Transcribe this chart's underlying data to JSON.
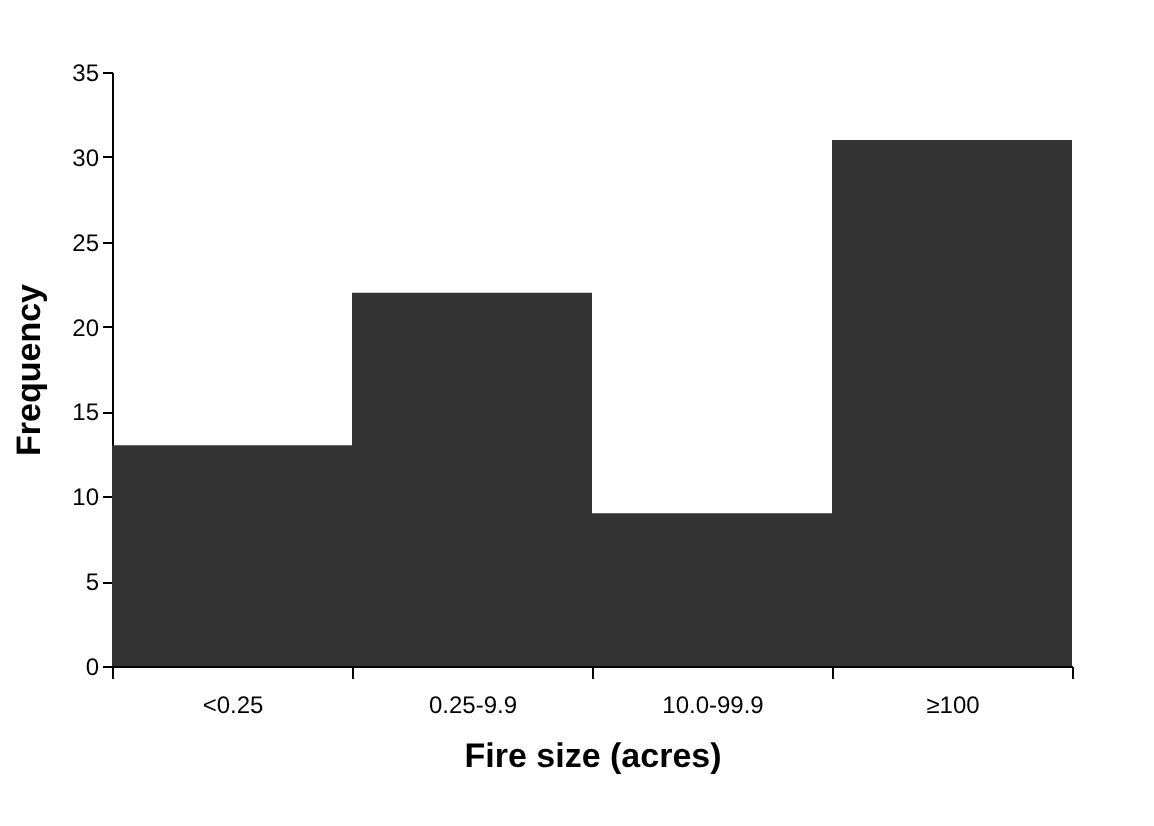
{
  "chart_data": {
    "type": "bar",
    "xlabel": "Fire size (acres)",
    "ylabel": "Frequency",
    "categories": [
      "<0.25",
      "0.25-9.9",
      "10.0-99.9",
      "≥100"
    ],
    "values": [
      13,
      22,
      9,
      31
    ],
    "color": "#333333",
    "ylim": [
      0,
      35
    ],
    "yticks": [
      0,
      5,
      10,
      15,
      20,
      25,
      30,
      35
    ],
    "grid": false
  }
}
